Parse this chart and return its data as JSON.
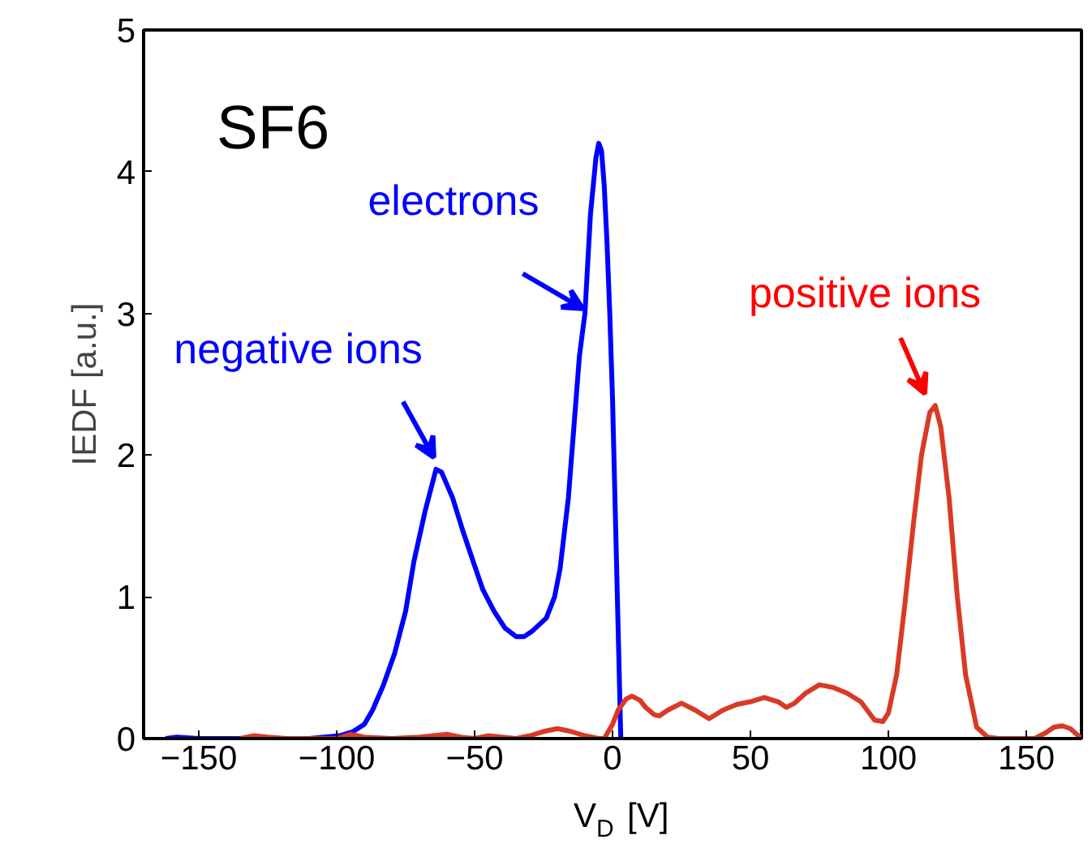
{
  "chart_data": {
    "type": "line",
    "xlabel": "V$_{D}$ [V]",
    "ylabel": "IEDF [a.u.]",
    "xlim": [
      -170,
      170
    ],
    "ylim": [
      0,
      5
    ],
    "xticks": [
      {
        "value": -150,
        "label": "−150"
      },
      {
        "value": -100,
        "label": "−100"
      },
      {
        "value": -50,
        "label": "−50"
      },
      0,
      50,
      100,
      150
    ],
    "yticks": [
      0,
      1,
      2,
      3,
      4,
      5
    ],
    "grid": false,
    "marker": "none",
    "line_style": "solid",
    "series": [
      {
        "color": "#0000ff",
        "x": [
          -162,
          -158,
          -150,
          -130,
          -110,
          -99,
          -94,
          -90,
          -87,
          -83,
          -79,
          -75,
          -72,
          -68,
          -64,
          -62,
          -58,
          -54,
          -50,
          -47,
          -43,
          -39,
          -35,
          -32,
          -29,
          -24,
          -21,
          -19,
          -16,
          -14,
          -12,
          -10,
          -8,
          -6,
          -5,
          -4,
          -3,
          -2,
          -1,
          0,
          1,
          2,
          3
        ],
        "values": [
          0,
          0.01,
          0,
          0,
          0,
          0.02,
          0.05,
          0.1,
          0.2,
          0.38,
          0.6,
          0.9,
          1.25,
          1.6,
          1.9,
          1.88,
          1.7,
          1.45,
          1.22,
          1.05,
          0.9,
          0.78,
          0.72,
          0.72,
          0.76,
          0.85,
          1.0,
          1.2,
          1.7,
          2.2,
          2.7,
          3.0,
          3.7,
          4.1,
          4.2,
          4.15,
          3.9,
          3.5,
          3.0,
          2.4,
          1.6,
          0.8,
          0
        ]
      },
      {
        "color": "#d93a26",
        "x": [
          -135,
          -130,
          -125,
          -118,
          -100,
          -95,
          -90,
          -80,
          -70,
          -65,
          -60,
          -55,
          -50,
          -45,
          -40,
          -35,
          -30,
          -25,
          -20,
          -15,
          -10,
          -5,
          -3,
          0,
          2,
          5,
          7,
          10,
          12,
          15,
          17,
          20,
          25,
          30,
          35,
          40,
          45,
          50,
          55,
          60,
          63,
          66,
          70,
          75,
          80,
          85,
          90,
          95,
          98,
          100,
          103,
          106,
          109,
          112,
          115,
          117,
          119,
          122,
          125,
          128,
          132,
          136,
          140,
          150,
          153,
          157,
          160,
          163,
          166,
          170
        ],
        "values": [
          0,
          0.02,
          0.01,
          0,
          0,
          0.03,
          0.01,
          0,
          0.01,
          0.02,
          0.03,
          0.01,
          0,
          0.02,
          0.01,
          0,
          0.02,
          0.05,
          0.07,
          0.05,
          0.02,
          0,
          0,
          0.1,
          0.2,
          0.28,
          0.3,
          0.27,
          0.22,
          0.17,
          0.16,
          0.2,
          0.25,
          0.2,
          0.14,
          0.2,
          0.24,
          0.26,
          0.29,
          0.26,
          0.22,
          0.25,
          0.32,
          0.38,
          0.36,
          0.32,
          0.26,
          0.13,
          0.12,
          0.18,
          0.45,
          0.95,
          1.5,
          2.0,
          2.3,
          2.35,
          2.2,
          1.7,
          1.0,
          0.45,
          0.08,
          0.01,
          0,
          0,
          0,
          0.04,
          0.08,
          0.09,
          0.07,
          0
        ]
      }
    ],
    "annotations": [
      "SF6",
      {
        "text": "negative ions",
        "x": -63,
        "y": 1.95
      },
      {
        "text": "electrons",
        "x": -9,
        "y": 3.0
      },
      {
        "text": "positive ions",
        "x": 115,
        "y": 2.4
      }
    ]
  }
}
